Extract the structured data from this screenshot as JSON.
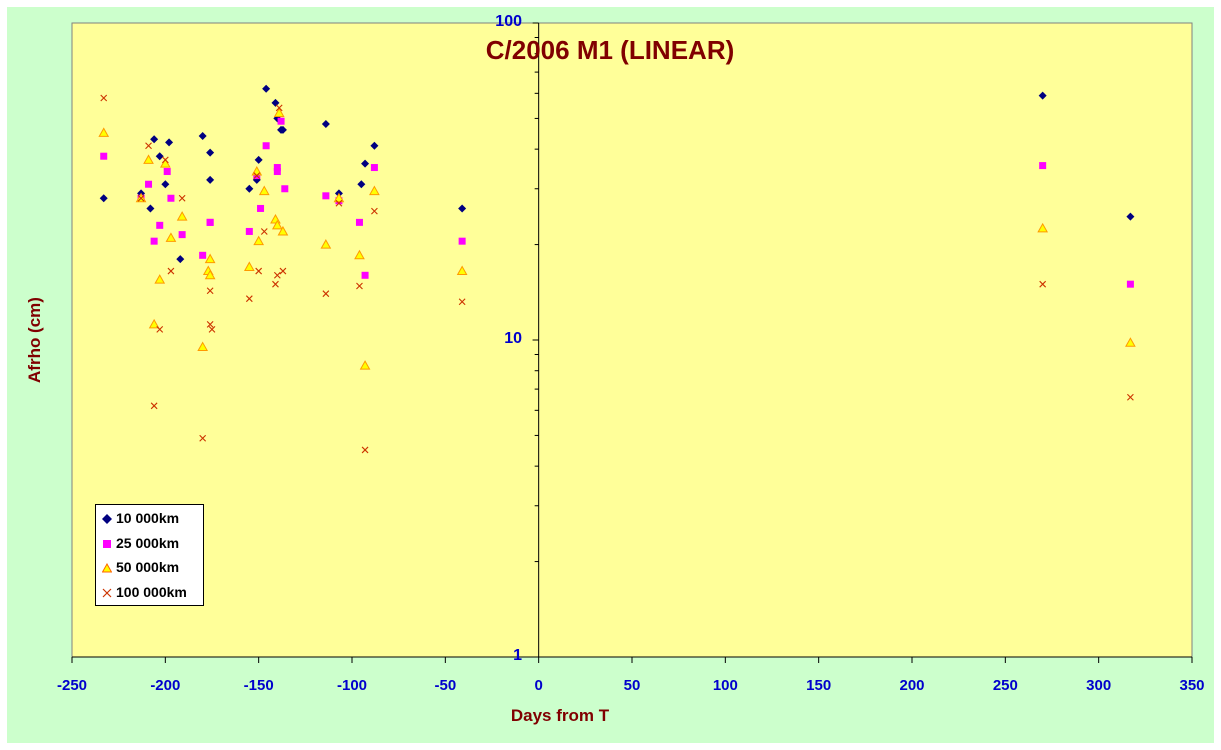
{
  "chart_data": {
    "type": "scatter",
    "title": "C/2006 M1 (LINEAR)",
    "xlabel": "Days from T",
    "ylabel": "Afrho (cm)",
    "xlim": [
      -250,
      350
    ],
    "ylim": [
      1,
      100
    ],
    "yscale": "log",
    "x_ticks": [
      "-250",
      "-200",
      "-150",
      "-100",
      "-50",
      "0",
      "50",
      "100",
      "150",
      "200",
      "250",
      "300",
      "350"
    ],
    "y_ticks": [
      "1",
      "10",
      "100"
    ],
    "legend_position": "bottom-left",
    "background": "#ffff99",
    "outer_background": "#ccffcc",
    "series": [
      {
        "name": "10 000km",
        "marker": "diamond",
        "color": "#000080",
        "points": [
          [
            -233,
            28
          ],
          [
            -213,
            29
          ],
          [
            -208,
            26
          ],
          [
            -206,
            43
          ],
          [
            -203,
            38
          ],
          [
            -200,
            31
          ],
          [
            -198,
            42
          ],
          [
            -192,
            18
          ],
          [
            -180,
            44
          ],
          [
            -176,
            39
          ],
          [
            -176,
            32
          ],
          [
            -155,
            30
          ],
          [
            -151,
            32
          ],
          [
            -150,
            37
          ],
          [
            -146,
            62
          ],
          [
            -141,
            56
          ],
          [
            -140,
            50
          ],
          [
            -138,
            46
          ],
          [
            -137,
            46
          ],
          [
            -114,
            48
          ],
          [
            -107,
            29
          ],
          [
            -95,
            31
          ],
          [
            -93,
            36
          ],
          [
            -88,
            41
          ],
          [
            -41,
            26
          ],
          [
            270,
            59
          ],
          [
            317,
            24.5
          ]
        ]
      },
      {
        "name": "25 000km",
        "marker": "square",
        "color": "#ff00ff",
        "points": [
          [
            -233,
            38
          ],
          [
            -213,
            28
          ],
          [
            -209,
            31
          ],
          [
            -206,
            20.5
          ],
          [
            -203,
            23
          ],
          [
            -199,
            34
          ],
          [
            -197,
            28
          ],
          [
            -191,
            21.5
          ],
          [
            -180,
            18.5
          ],
          [
            -176,
            23.5
          ],
          [
            -176,
            23.5
          ],
          [
            -155,
            22
          ],
          [
            -151,
            33
          ],
          [
            -149,
            26
          ],
          [
            -146,
            41
          ],
          [
            -140,
            34
          ],
          [
            -140,
            35
          ],
          [
            -138,
            49
          ],
          [
            -136,
            30
          ],
          [
            -114,
            28.5
          ],
          [
            -107,
            27.5
          ],
          [
            -96,
            23.5
          ],
          [
            -93,
            16
          ],
          [
            -88,
            35
          ],
          [
            -41,
            20.5
          ],
          [
            270,
            35.5
          ],
          [
            317,
            15
          ]
        ]
      },
      {
        "name": "50 000km",
        "marker": "triangle",
        "color": "#ff9900",
        "points": [
          [
            -233,
            45
          ],
          [
            -213,
            28
          ],
          [
            -209,
            37
          ],
          [
            -206,
            11.2
          ],
          [
            -203,
            15.5
          ],
          [
            -200,
            36
          ],
          [
            -197,
            21
          ],
          [
            -191,
            24.5
          ],
          [
            -180,
            9.5
          ],
          [
            -177,
            16.5
          ],
          [
            -176,
            18
          ],
          [
            -176,
            16
          ],
          [
            -155,
            17
          ],
          [
            -151,
            34
          ],
          [
            -150,
            20.5
          ],
          [
            -147,
            29.5
          ],
          [
            -141,
            24
          ],
          [
            -140,
            23
          ],
          [
            -139,
            52
          ],
          [
            -137,
            22
          ],
          [
            -114,
            20
          ],
          [
            -107,
            28
          ],
          [
            -96,
            18.5
          ],
          [
            -93,
            8.3
          ],
          [
            -88,
            29.5
          ],
          [
            -41,
            16.5
          ],
          [
            270,
            22.5
          ],
          [
            317,
            9.8
          ]
        ]
      },
      {
        "name": "100 000km",
        "marker": "x",
        "color": "#cc3300",
        "points": [
          [
            -233,
            58
          ],
          [
            -213,
            28
          ],
          [
            -209,
            41
          ],
          [
            -206,
            6.2
          ],
          [
            -203,
            10.8
          ],
          [
            -200,
            37
          ],
          [
            -197,
            16.5
          ],
          [
            -191,
            28
          ],
          [
            -180,
            4.9
          ],
          [
            -176,
            14.3
          ],
          [
            -176,
            11.2
          ],
          [
            -175,
            10.8
          ],
          [
            -155,
            13.5
          ],
          [
            -151,
            33
          ],
          [
            -150,
            16.5
          ],
          [
            -147,
            22
          ],
          [
            -141,
            15
          ],
          [
            -140,
            16
          ],
          [
            -139,
            54
          ],
          [
            -137,
            16.5
          ],
          [
            -114,
            14
          ],
          [
            -107,
            27
          ],
          [
            -96,
            14.8
          ],
          [
            -93,
            4.5
          ],
          [
            -88,
            25.5
          ],
          [
            -41,
            13.2
          ],
          [
            270,
            15
          ],
          [
            317,
            6.6
          ]
        ]
      }
    ]
  }
}
